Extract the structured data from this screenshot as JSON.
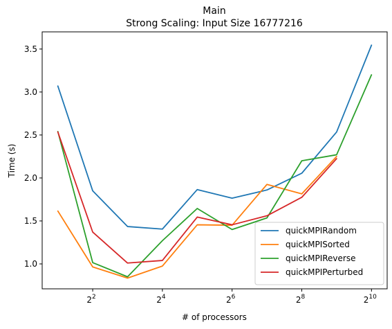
{
  "chart_data": {
    "type": "line",
    "title": "Main",
    "subtitle": "Strong Scaling: Input Size 16777216",
    "xlabel": "# of processors",
    "ylabel": "Time (s)",
    "x_scale": "log2",
    "x": [
      2,
      4,
      8,
      16,
      32,
      64,
      128,
      256,
      512,
      1024
    ],
    "x_tick_values": [
      4,
      16,
      64,
      256,
      1024
    ],
    "x_tick_labels": [
      {
        "base": "2",
        "exp": "2"
      },
      {
        "base": "2",
        "exp": "4"
      },
      {
        "base": "2",
        "exp": "6"
      },
      {
        "base": "2",
        "exp": "8"
      },
      {
        "base": "2",
        "exp": "10"
      }
    ],
    "y_ticks": [
      "1.0",
      "1.5",
      "2.0",
      "2.5",
      "3.0",
      "3.5"
    ],
    "ylim": [
      0.71,
      3.7
    ],
    "xlim_log2": [
      0.55,
      10.45
    ],
    "grid": false,
    "legend_position": "lower-right",
    "series": [
      {
        "name": "quickMPIRandom",
        "color": "#1f77b4",
        "values": [
          3.07,
          1.85,
          1.435,
          1.405,
          1.865,
          1.765,
          1.86,
          2.055,
          2.535,
          3.545
        ]
      },
      {
        "name": "quickMPISorted",
        "color": "#ff7f0e",
        "values": [
          1.615,
          0.965,
          0.835,
          0.975,
          1.455,
          1.45,
          1.925,
          1.815,
          2.25,
          null
        ]
      },
      {
        "name": "quickMPIReverse",
        "color": "#2ca02c",
        "values": [
          2.54,
          1.015,
          0.85,
          1.27,
          1.645,
          1.4,
          1.535,
          2.2,
          2.27,
          3.2
        ]
      },
      {
        "name": "quickMPIPerturbed",
        "color": "#d62728",
        "values": [
          2.535,
          1.37,
          1.01,
          1.04,
          1.545,
          1.455,
          1.56,
          1.775,
          2.225,
          null
        ]
      }
    ]
  }
}
